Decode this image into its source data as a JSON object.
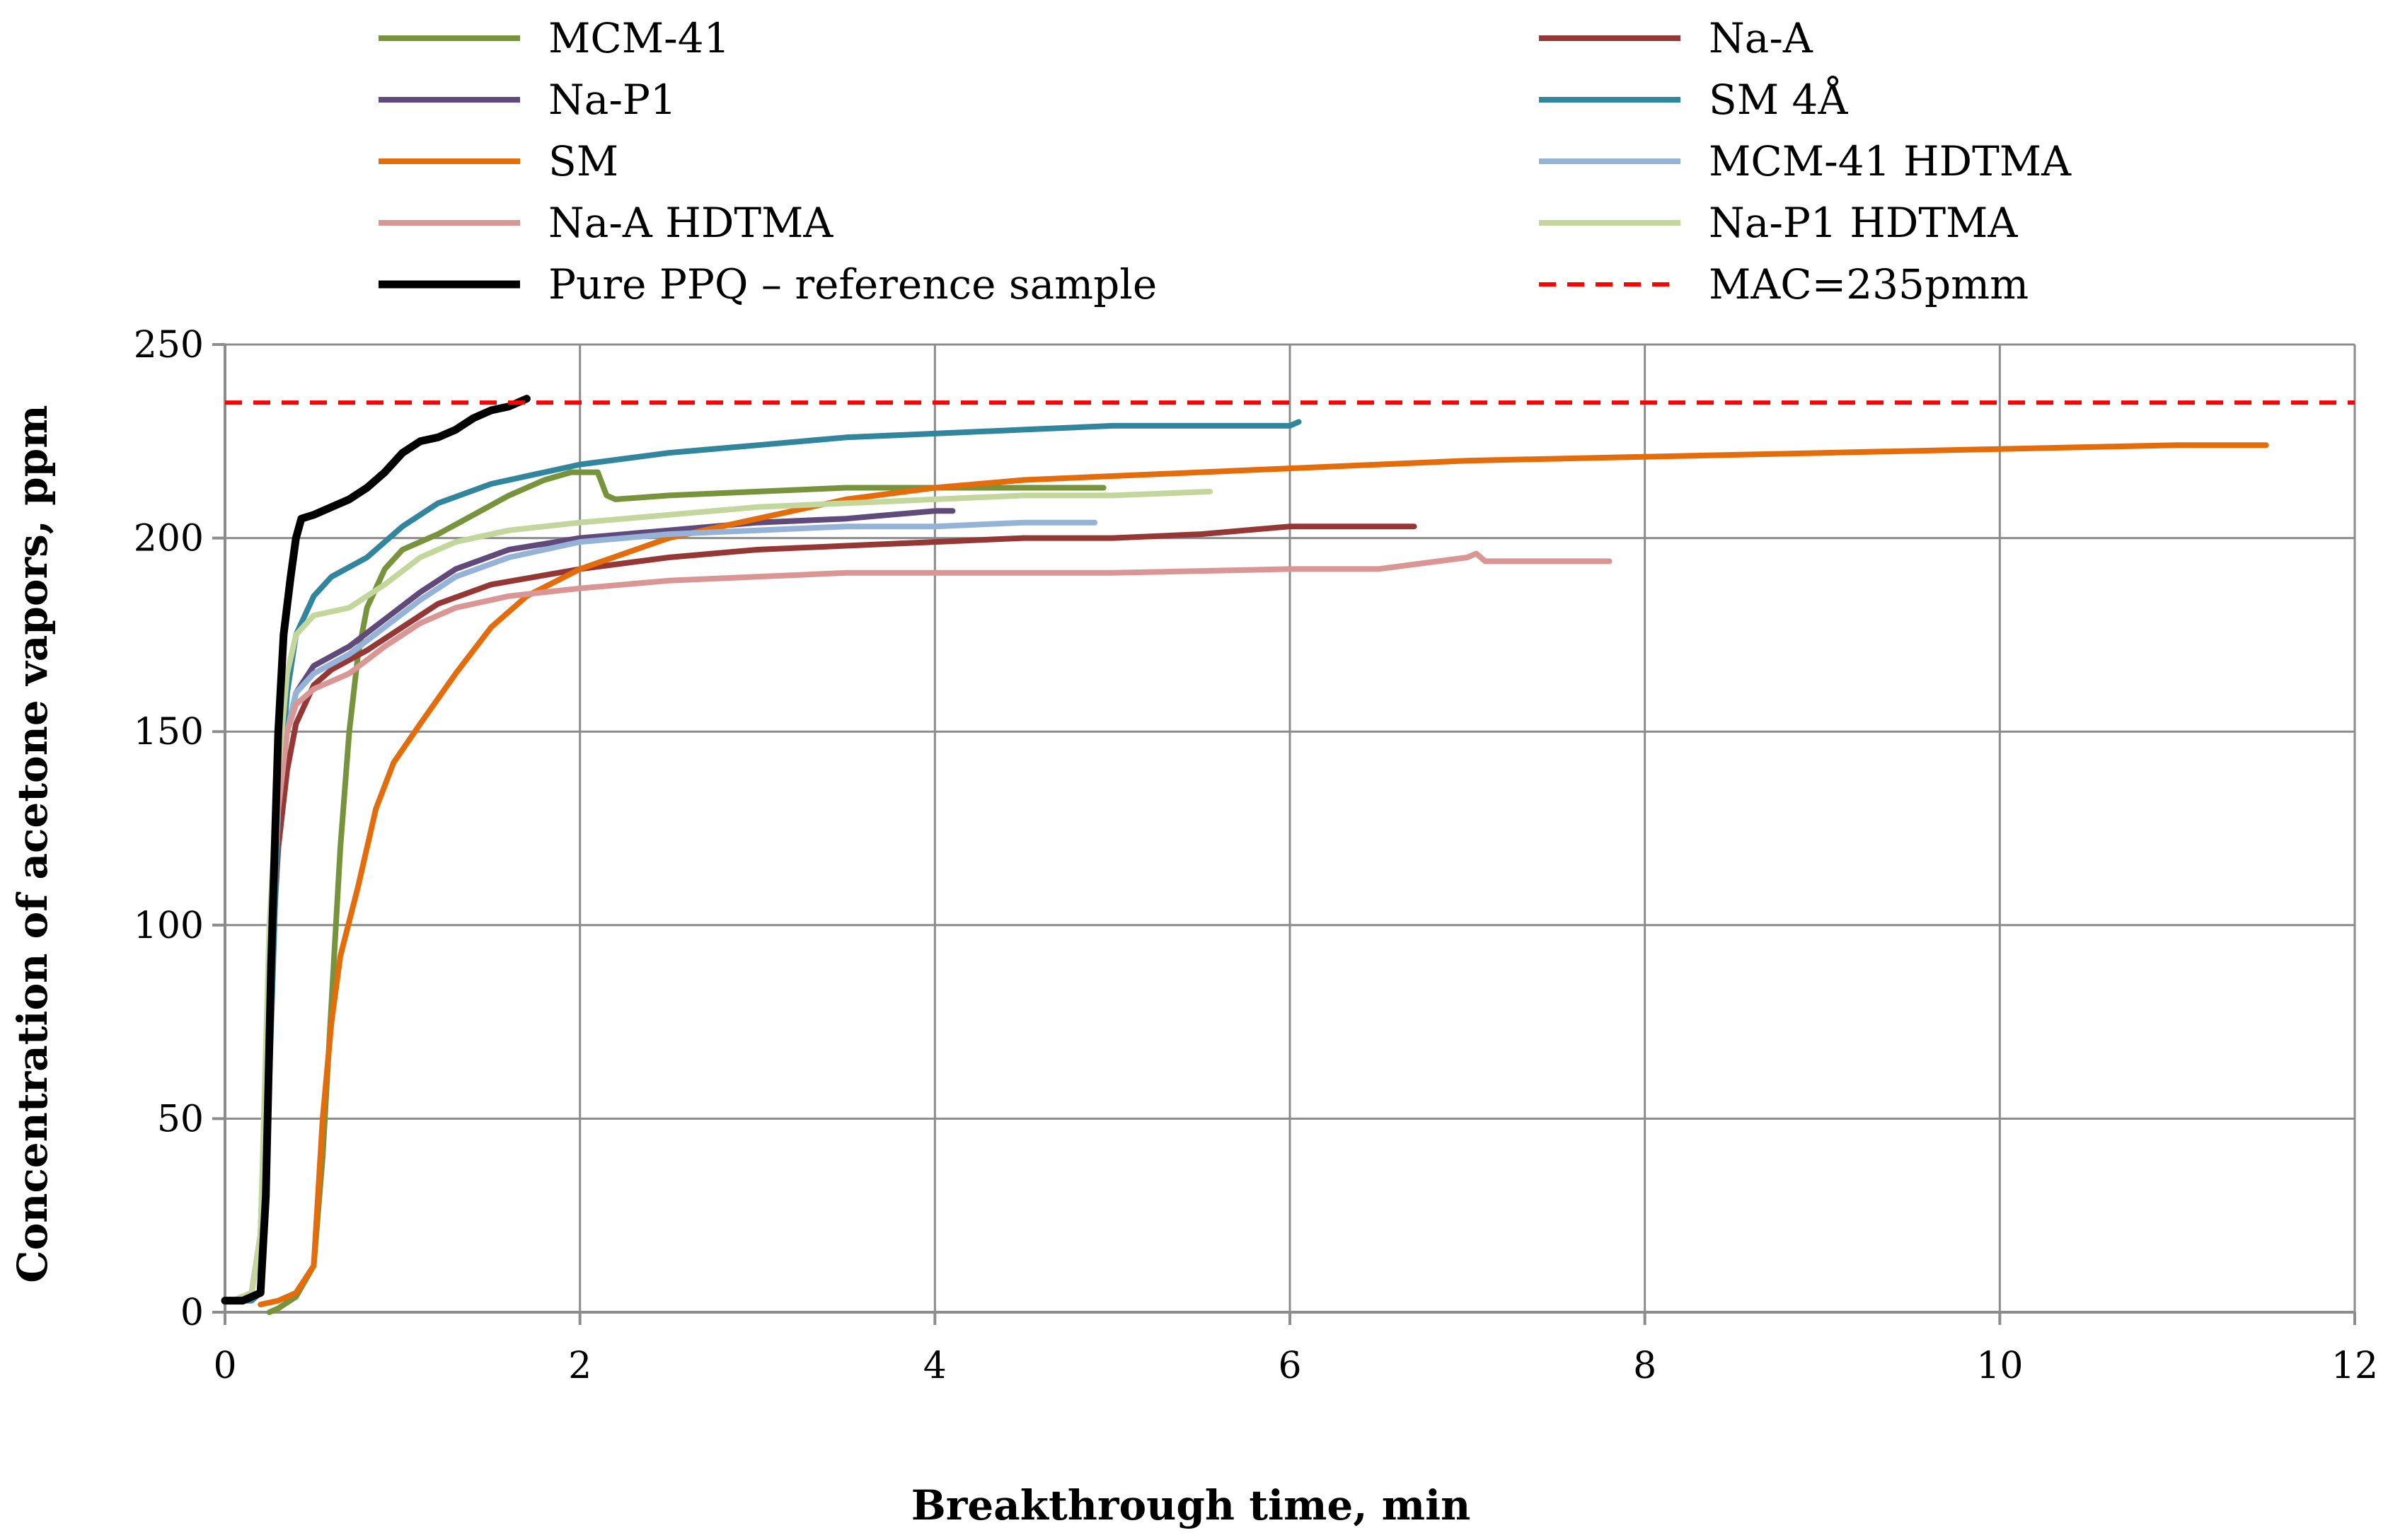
{
  "chart_data": {
    "type": "line",
    "title": "",
    "xlabel": "Breakthrough time, min",
    "ylabel": "Concentration of acetone vapors, ppm",
    "xlim": [
      0,
      12
    ],
    "ylim": [
      0,
      250
    ],
    "x_ticks": [
      0,
      2,
      4,
      6,
      8,
      10,
      12
    ],
    "y_ticks": [
      0,
      50,
      100,
      150,
      200,
      250
    ],
    "x_tick_labels": [
      "0",
      "2",
      "4",
      "6",
      "8",
      "10",
      "12"
    ],
    "y_tick_labels": [
      "0",
      "50",
      "100",
      "150",
      "200",
      "250"
    ],
    "grid": true,
    "legend_position": "top",
    "series": [
      {
        "name": "MCM-41",
        "color": "#77933c",
        "dash": false,
        "points": [
          [
            0.25,
            0
          ],
          [
            0.3,
            1
          ],
          [
            0.4,
            4
          ],
          [
            0.5,
            12
          ],
          [
            0.55,
            40
          ],
          [
            0.6,
            80
          ],
          [
            0.65,
            120
          ],
          [
            0.7,
            150
          ],
          [
            0.75,
            170
          ],
          [
            0.8,
            182
          ],
          [
            0.9,
            192
          ],
          [
            1.0,
            197
          ],
          [
            1.2,
            201
          ],
          [
            1.4,
            206
          ],
          [
            1.6,
            211
          ],
          [
            1.8,
            215
          ],
          [
            1.95,
            217
          ],
          [
            2.1,
            217
          ],
          [
            2.15,
            211
          ],
          [
            2.2,
            210
          ],
          [
            2.5,
            211
          ],
          [
            3.0,
            212
          ],
          [
            3.5,
            213
          ],
          [
            4.0,
            213
          ],
          [
            4.5,
            213
          ],
          [
            4.95,
            213
          ]
        ]
      },
      {
        "name": "Na-A",
        "color": "#953735",
        "dash": false,
        "points": [
          [
            0.05,
            3
          ],
          [
            0.15,
            5
          ],
          [
            0.2,
            20
          ],
          [
            0.25,
            80
          ],
          [
            0.3,
            120
          ],
          [
            0.35,
            140
          ],
          [
            0.4,
            152
          ],
          [
            0.5,
            162
          ],
          [
            0.6,
            166
          ],
          [
            0.8,
            171
          ],
          [
            1.0,
            177
          ],
          [
            1.2,
            183
          ],
          [
            1.5,
            188
          ],
          [
            2.0,
            192
          ],
          [
            2.5,
            195
          ],
          [
            3.0,
            197
          ],
          [
            3.5,
            198
          ],
          [
            4.0,
            199
          ],
          [
            4.5,
            200
          ],
          [
            5.0,
            200
          ],
          [
            5.5,
            201
          ],
          [
            6.0,
            203
          ],
          [
            6.5,
            203
          ],
          [
            6.7,
            203
          ]
        ]
      },
      {
        "name": "Na-P1",
        "color": "#604a7b",
        "dash": false,
        "points": [
          [
            0.05,
            3
          ],
          [
            0.15,
            5
          ],
          [
            0.2,
            20
          ],
          [
            0.25,
            90
          ],
          [
            0.3,
            130
          ],
          [
            0.35,
            150
          ],
          [
            0.4,
            160
          ],
          [
            0.5,
            167
          ],
          [
            0.7,
            172
          ],
          [
            0.9,
            179
          ],
          [
            1.1,
            186
          ],
          [
            1.3,
            192
          ],
          [
            1.6,
            197
          ],
          [
            2.0,
            200
          ],
          [
            2.5,
            202
          ],
          [
            3.0,
            204
          ],
          [
            3.5,
            205
          ],
          [
            4.0,
            207
          ],
          [
            4.1,
            207
          ]
        ]
      },
      {
        "name": "SM 4Å",
        "color": "#31859c",
        "dash": false,
        "points": [
          [
            0.05,
            3
          ],
          [
            0.15,
            3
          ],
          [
            0.2,
            5
          ],
          [
            0.25,
            60
          ],
          [
            0.3,
            130
          ],
          [
            0.35,
            160
          ],
          [
            0.4,
            175
          ],
          [
            0.5,
            185
          ],
          [
            0.6,
            190
          ],
          [
            0.8,
            195
          ],
          [
            1.0,
            203
          ],
          [
            1.2,
            209
          ],
          [
            1.5,
            214
          ],
          [
            1.8,
            217
          ],
          [
            2.0,
            219
          ],
          [
            2.5,
            222
          ],
          [
            3.0,
            224
          ],
          [
            3.5,
            226
          ],
          [
            4.0,
            227
          ],
          [
            4.5,
            228
          ],
          [
            5.0,
            229
          ],
          [
            5.5,
            229
          ],
          [
            6.0,
            229
          ],
          [
            6.05,
            230
          ]
        ]
      },
      {
        "name": "SM",
        "color": "#e46c0a",
        "dash": false,
        "points": [
          [
            0.2,
            2
          ],
          [
            0.3,
            3
          ],
          [
            0.4,
            5
          ],
          [
            0.5,
            12
          ],
          [
            0.55,
            50
          ],
          [
            0.6,
            75
          ],
          [
            0.65,
            92
          ],
          [
            0.75,
            110
          ],
          [
            0.85,
            130
          ],
          [
            0.95,
            142
          ],
          [
            1.1,
            152
          ],
          [
            1.3,
            165
          ],
          [
            1.5,
            177
          ],
          [
            1.7,
            185
          ],
          [
            2.0,
            192
          ],
          [
            2.5,
            200
          ],
          [
            3.0,
            205
          ],
          [
            3.5,
            210
          ],
          [
            4.0,
            213
          ],
          [
            4.5,
            215
          ],
          [
            5.0,
            216
          ],
          [
            6.0,
            218
          ],
          [
            7.0,
            220
          ],
          [
            8.0,
            221
          ],
          [
            9.0,
            222
          ],
          [
            10.0,
            223
          ],
          [
            11.0,
            224
          ],
          [
            11.5,
            224
          ]
        ]
      },
      {
        "name": "MCM-41 HDTMA",
        "color": "#95b3d7",
        "dash": false,
        "points": [
          [
            0.05,
            3
          ],
          [
            0.15,
            5
          ],
          [
            0.2,
            20
          ],
          [
            0.25,
            90
          ],
          [
            0.3,
            130
          ],
          [
            0.35,
            150
          ],
          [
            0.4,
            160
          ],
          [
            0.5,
            165
          ],
          [
            0.7,
            170
          ],
          [
            0.9,
            177
          ],
          [
            1.1,
            184
          ],
          [
            1.3,
            190
          ],
          [
            1.6,
            195
          ],
          [
            2.0,
            199
          ],
          [
            2.5,
            201
          ],
          [
            3.0,
            202
          ],
          [
            3.5,
            203
          ],
          [
            4.0,
            203
          ],
          [
            4.5,
            204
          ],
          [
            4.9,
            204
          ]
        ]
      },
      {
        "name": "Na-A HDTMA",
        "color": "#d99694",
        "dash": false,
        "points": [
          [
            0.05,
            3
          ],
          [
            0.15,
            5
          ],
          [
            0.2,
            20
          ],
          [
            0.25,
            90
          ],
          [
            0.3,
            130
          ],
          [
            0.35,
            150
          ],
          [
            0.4,
            157
          ],
          [
            0.5,
            161
          ],
          [
            0.7,
            165
          ],
          [
            0.9,
            172
          ],
          [
            1.1,
            178
          ],
          [
            1.3,
            182
          ],
          [
            1.6,
            185
          ],
          [
            2.0,
            187
          ],
          [
            2.5,
            189
          ],
          [
            3.0,
            190
          ],
          [
            3.5,
            191
          ],
          [
            4.0,
            191
          ],
          [
            5.0,
            191
          ],
          [
            6.0,
            192
          ],
          [
            6.5,
            192
          ],
          [
            7.0,
            195
          ],
          [
            7.05,
            196
          ],
          [
            7.1,
            194
          ],
          [
            7.5,
            194
          ],
          [
            7.8,
            194
          ]
        ]
      },
      {
        "name": "Na-P1 HDTMA",
        "color": "#c3d69b",
        "dash": false,
        "points": [
          [
            0.05,
            3
          ],
          [
            0.15,
            5
          ],
          [
            0.2,
            20
          ],
          [
            0.25,
            100
          ],
          [
            0.3,
            140
          ],
          [
            0.35,
            165
          ],
          [
            0.4,
            175
          ],
          [
            0.5,
            180
          ],
          [
            0.7,
            182
          ],
          [
            0.9,
            188
          ],
          [
            1.1,
            195
          ],
          [
            1.3,
            199
          ],
          [
            1.6,
            202
          ],
          [
            2.0,
            204
          ],
          [
            2.5,
            206
          ],
          [
            3.0,
            208
          ],
          [
            3.5,
            209
          ],
          [
            4.0,
            210
          ],
          [
            4.5,
            211
          ],
          [
            5.0,
            211
          ],
          [
            5.55,
            212
          ]
        ]
      },
      {
        "name": "Pure PPQ – reference sample",
        "color": "#000000",
        "dash": false,
        "width": 11,
        "points": [
          [
            0.0,
            3
          ],
          [
            0.1,
            3
          ],
          [
            0.2,
            5
          ],
          [
            0.23,
            30
          ],
          [
            0.26,
            90
          ],
          [
            0.3,
            150
          ],
          [
            0.33,
            175
          ],
          [
            0.37,
            190
          ],
          [
            0.4,
            200
          ],
          [
            0.43,
            205
          ],
          [
            0.5,
            206
          ],
          [
            0.6,
            208
          ],
          [
            0.7,
            210
          ],
          [
            0.8,
            213
          ],
          [
            0.9,
            217
          ],
          [
            1.0,
            222
          ],
          [
            1.1,
            225
          ],
          [
            1.2,
            226
          ],
          [
            1.3,
            228
          ],
          [
            1.4,
            231
          ],
          [
            1.5,
            233
          ],
          [
            1.6,
            234
          ],
          [
            1.7,
            236
          ]
        ]
      },
      {
        "name": "MAC=235pmm",
        "color": "#ff0000",
        "dash": true,
        "width": 6,
        "points": [
          [
            0,
            235
          ],
          [
            12,
            235
          ]
        ]
      }
    ]
  }
}
